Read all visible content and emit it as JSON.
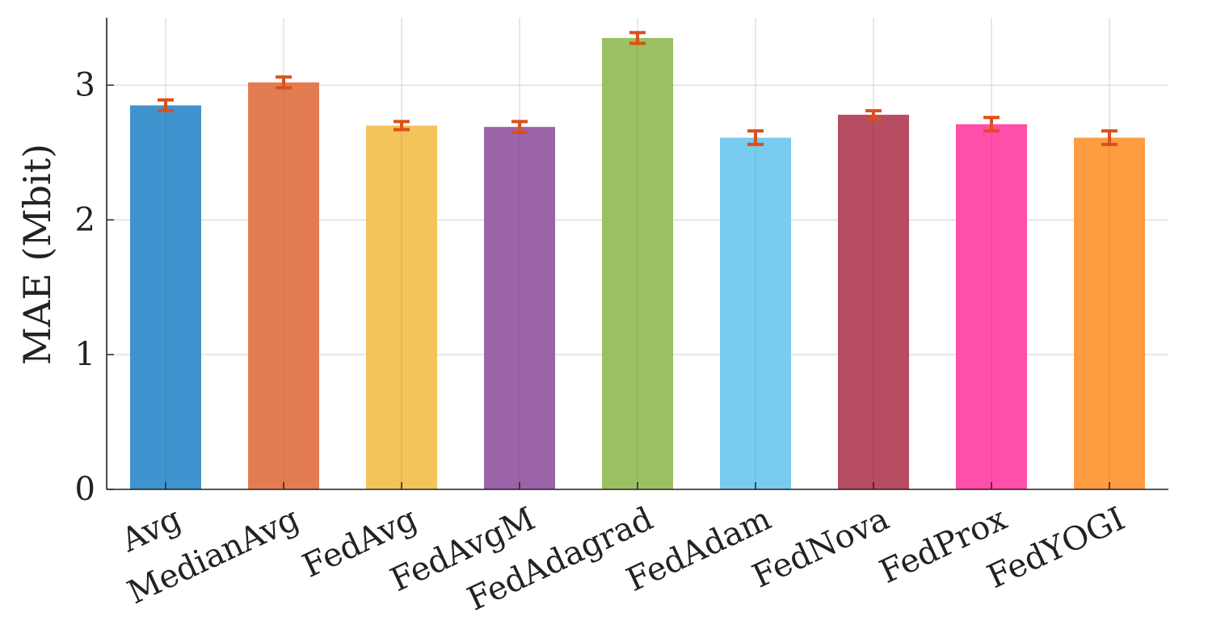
{
  "chart_data": {
    "type": "bar",
    "title": "",
    "xlabel": "",
    "ylabel": "MAE (Mbit)",
    "categories": [
      "Avg",
      "MedianAvg",
      "FedAvg",
      "FedAvgM",
      "FedAdagrad",
      "FedAdam",
      "FedNova",
      "FedProx",
      "FedYOGI"
    ],
    "values": [
      2.85,
      3.02,
      2.7,
      2.69,
      3.35,
      2.61,
      2.78,
      2.71,
      2.61
    ],
    "errors": [
      0.04,
      0.04,
      0.03,
      0.04,
      0.04,
      0.05,
      0.03,
      0.05,
      0.05
    ],
    "colors": [
      "#3f94cf",
      "#e37d51",
      "#f2c45a",
      "#9c64a8",
      "#9bc062",
      "#79cbf0",
      "#b74d62",
      "#ff4fa8",
      "#ff9c41"
    ],
    "error_color": "#d9511b",
    "ylim": [
      0,
      3.5
    ],
    "yticks": [
      "0",
      "1",
      "2",
      "3"
    ],
    "grid": true,
    "legend": "none"
  }
}
